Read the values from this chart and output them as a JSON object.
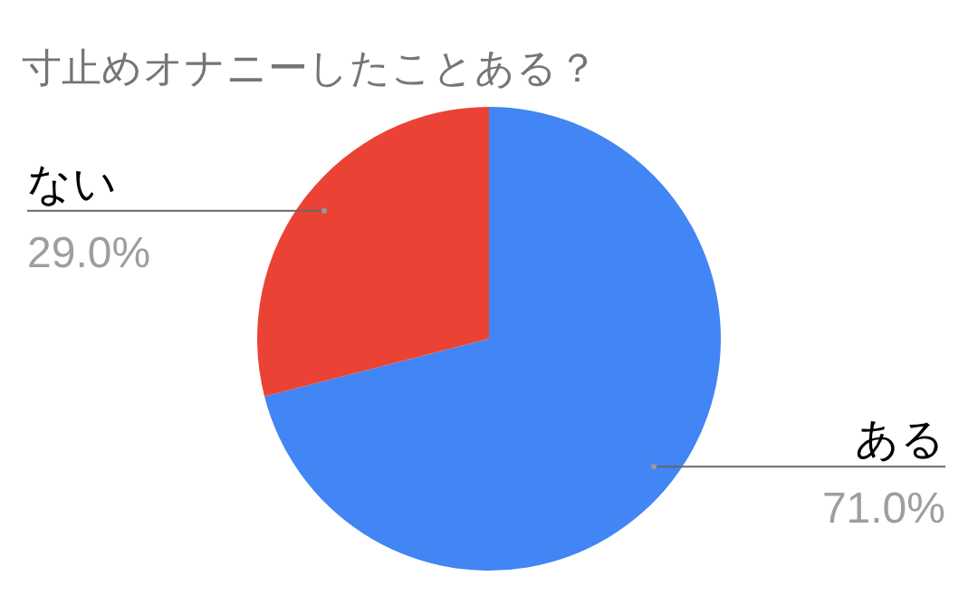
{
  "chart_data": {
    "type": "pie",
    "title": "寸止めオナニーしたことある？",
    "categories": [
      "ある",
      "ない"
    ],
    "values": [
      71,
      29
    ],
    "colors": [
      "#4285f4",
      "#ea4335"
    ],
    "value_labels": [
      "71.0%",
      "29.0%"
    ]
  }
}
